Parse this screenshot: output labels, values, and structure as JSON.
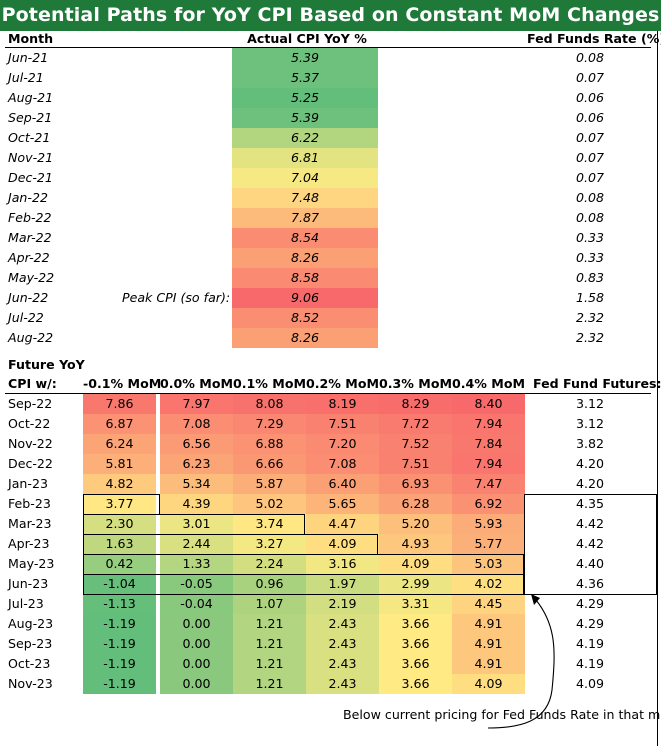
{
  "title": "Potential Paths for YoY CPI Based on Constant MoM Changes",
  "headers": {
    "month": "Month",
    "actual": "Actual CPI YoY %",
    "fed_funds": "Fed Funds Rate (%)"
  },
  "peak_label": "Peak CPI (so far):",
  "section2": {
    "line1": "Future YoY",
    "line2": "CPI w/:",
    "scenarios": [
      "-0.1% MoM",
      "0.0% MoM",
      "0.1% MoM",
      "0.2% MoM",
      "0.3% MoM",
      "0.4% MoM"
    ],
    "futures_header": "Fed Fund Futures:"
  },
  "annotation": "Below current pricing for Fed Funds Rate in that month.",
  "chart_data": {
    "type": "table",
    "title": "Potential Paths for YoY CPI Based on Constant MoM Changes",
    "actual": {
      "months": [
        "Jun-21",
        "Jul-21",
        "Aug-21",
        "Sep-21",
        "Oct-21",
        "Nov-21",
        "Dec-21",
        "Jan-22",
        "Feb-22",
        "Mar-22",
        "Apr-22",
        "May-22",
        "Jun-22",
        "Jul-22",
        "Aug-22"
      ],
      "cpi_yoy": [
        "5.39",
        "5.37",
        "5.25",
        "5.39",
        "6.22",
        "6.81",
        "7.04",
        "7.48",
        "7.87",
        "8.54",
        "8.26",
        "8.58",
        "9.06",
        "8.52",
        "8.26"
      ],
      "fed_funds_rate": [
        "0.08",
        "0.07",
        "0.06",
        "0.06",
        "0.07",
        "0.07",
        "0.07",
        "0.08",
        "0.08",
        "0.33",
        "0.33",
        "0.83",
        "1.58",
        "2.32",
        "2.32"
      ]
    },
    "future": {
      "months": [
        "Sep-22",
        "Oct-22",
        "Nov-22",
        "Dec-22",
        "Jan-23",
        "Feb-23",
        "Mar-23",
        "Apr-23",
        "May-23",
        "Jun-23",
        "Jul-23",
        "Aug-23",
        "Sep-23",
        "Oct-23",
        "Nov-23"
      ],
      "scenarios": [
        "-0.1% MoM",
        "0.0% MoM",
        "0.1% MoM",
        "0.2% MoM",
        "0.3% MoM",
        "0.4% MoM"
      ],
      "values": [
        [
          "7.86",
          "7.97",
          "8.08",
          "8.19",
          "8.29",
          "8.40"
        ],
        [
          "6.87",
          "7.08",
          "7.29",
          "7.51",
          "7.72",
          "7.94"
        ],
        [
          "6.24",
          "6.56",
          "6.88",
          "7.20",
          "7.52",
          "7.84"
        ],
        [
          "5.81",
          "6.23",
          "6.66",
          "7.08",
          "7.51",
          "7.94"
        ],
        [
          "4.82",
          "5.34",
          "5.87",
          "6.40",
          "6.93",
          "7.47"
        ],
        [
          "3.77",
          "4.39",
          "5.02",
          "5.65",
          "6.28",
          "6.92"
        ],
        [
          "2.30",
          "3.01",
          "3.74",
          "4.47",
          "5.20",
          "5.93"
        ],
        [
          "1.63",
          "2.44",
          "3.27",
          "4.09",
          "4.93",
          "5.77"
        ],
        [
          "0.42",
          "1.33",
          "2.24",
          "3.16",
          "4.09",
          "5.03"
        ],
        [
          "-1.04",
          "-0.05",
          "0.96",
          "1.97",
          "2.99",
          "4.02"
        ],
        [
          "-1.13",
          "-0.04",
          "1.07",
          "2.19",
          "3.31",
          "4.45"
        ],
        [
          "-1.19",
          "0.00",
          "1.21",
          "2.43",
          "3.66",
          "4.91"
        ],
        [
          "-1.19",
          "0.00",
          "1.21",
          "2.43",
          "3.66",
          "4.91"
        ],
        [
          "-1.19",
          "0.00",
          "1.21",
          "2.43",
          "3.66",
          "4.91"
        ],
        [
          "-1.19",
          "0.00",
          "1.21",
          "2.43",
          "3.66",
          "4.09"
        ]
      ],
      "fed_fund_futures": [
        "3.12",
        "3.12",
        "3.82",
        "4.20",
        "4.20",
        "4.35",
        "4.42",
        "4.42",
        "4.40",
        "4.36",
        "4.29",
        "4.29",
        "4.19",
        "4.19",
        "4.09"
      ]
    },
    "color_scale": {
      "low": "#63be7b",
      "mid": "#ffeb84",
      "high": "#f8696b"
    }
  }
}
